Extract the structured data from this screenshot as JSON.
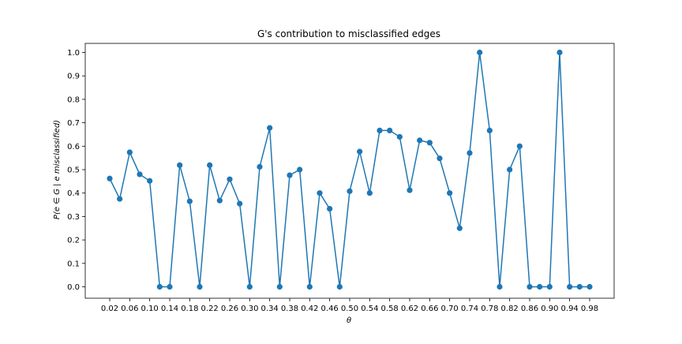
{
  "chart_data": {
    "type": "line",
    "title": "G's contribution to misclassified edges",
    "xlabel": "θ",
    "ylabel": "P(e ∈ G | e misclassified)",
    "x": [
      0.02,
      0.04,
      0.06,
      0.08,
      0.1,
      0.12,
      0.14,
      0.16,
      0.18,
      0.2,
      0.22,
      0.24,
      0.26,
      0.28,
      0.3,
      0.32,
      0.34,
      0.36,
      0.38,
      0.4,
      0.42,
      0.44,
      0.46,
      0.48,
      0.5,
      0.52,
      0.54,
      0.56,
      0.58,
      0.6,
      0.62,
      0.64,
      0.66,
      0.68,
      0.7,
      0.72,
      0.74,
      0.76,
      0.78,
      0.8,
      0.82,
      0.84,
      0.86,
      0.88,
      0.9,
      0.92,
      0.94,
      0.96,
      0.98
    ],
    "series": [
      {
        "values": [
          0.462,
          0.375,
          0.574,
          0.48,
          0.452,
          0.0,
          0.0,
          0.519,
          0.365,
          0.0,
          0.519,
          0.368,
          0.459,
          0.355,
          0.0,
          0.512,
          0.678,
          0.0,
          0.476,
          0.5,
          0.0,
          0.4,
          0.333,
          0.0,
          0.408,
          0.577,
          0.4,
          0.667,
          0.667,
          0.64,
          0.412,
          0.625,
          0.615,
          0.548,
          0.4,
          0.25,
          0.571,
          1.0,
          0.667,
          0.0,
          0.5,
          0.6,
          0.0,
          0.0,
          0.0,
          1.0,
          0.0,
          0.0,
          0.0
        ],
        "color": "#1f77b4"
      }
    ],
    "xticks": [
      "0.02",
      "0.06",
      "0.10",
      "0.14",
      "0.18",
      "0.22",
      "0.26",
      "0.30",
      "0.34",
      "0.38",
      "0.42",
      "0.46",
      "0.50",
      "0.54",
      "0.58",
      "0.62",
      "0.66",
      "0.70",
      "0.74",
      "0.78",
      "0.82",
      "0.86",
      "0.90",
      "0.94",
      "0.98"
    ],
    "yticks": [
      "0.0",
      "0.1",
      "0.2",
      "0.3",
      "0.4",
      "0.5",
      "0.6",
      "0.7",
      "0.8",
      "0.9",
      "1.0"
    ],
    "xlim": [
      -0.0,
      1.0
    ],
    "ylim": [
      -0.05,
      1.05
    ],
    "grid": false,
    "legend": "none"
  }
}
